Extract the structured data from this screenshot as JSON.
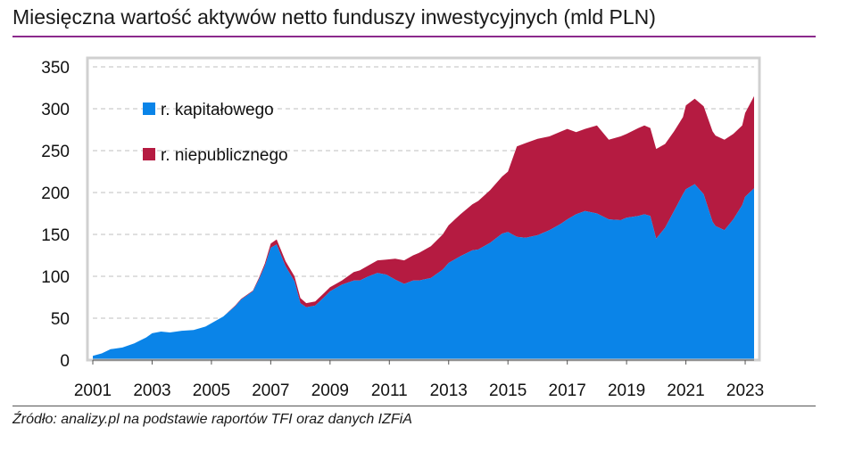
{
  "title": "Miesięczna wartość aktywów netto funduszy inwestycyjnych (mld PLN)",
  "source": "Źródło: analizy.pl na podstawie raportów TFI oraz danych IZFiA",
  "colors": {
    "kapitalowe": "#0a84e8",
    "niepubliczne": "#b51b41",
    "title_rule": "#8b2a8c",
    "grid": "#bfbfbf",
    "plot_border": "#d0d0d0"
  },
  "chart_data": {
    "type": "area",
    "stacked": true,
    "title": "Miesięczna wartość aktywów netto funduszy inwestycyjnych (mld PLN)",
    "xlabel": "",
    "ylabel": "",
    "xlim": [
      2001.0,
      2023.3
    ],
    "ylim": [
      0,
      350
    ],
    "yticks": [
      0,
      50,
      100,
      150,
      200,
      250,
      300,
      350
    ],
    "xticks": [
      "2001",
      "2003",
      "2005",
      "2007",
      "2009",
      "2011",
      "2013",
      "2015",
      "2017",
      "2019",
      "2021",
      "2023"
    ],
    "grid": true,
    "legend": {
      "placement": "top-left"
    },
    "x": [
      2001.0,
      2001.3,
      2001.6,
      2002.0,
      2002.4,
      2002.8,
      2003.0,
      2003.3,
      2003.6,
      2004.0,
      2004.4,
      2004.8,
      2005.0,
      2005.4,
      2005.8,
      2006.0,
      2006.4,
      2006.6,
      2006.8,
      2007.0,
      2007.2,
      2007.5,
      2007.8,
      2008.0,
      2008.2,
      2008.5,
      2008.8,
      2009.0,
      2009.4,
      2009.8,
      2010.0,
      2010.3,
      2010.6,
      2010.9,
      2011.2,
      2011.5,
      2011.8,
      2012.0,
      2012.4,
      2012.8,
      2013.0,
      2013.4,
      2013.8,
      2014.0,
      2014.4,
      2014.8,
      2015.0,
      2015.3,
      2015.6,
      2016.0,
      2016.4,
      2016.8,
      2017.0,
      2017.3,
      2017.6,
      2018.0,
      2018.4,
      2018.8,
      2019.0,
      2019.4,
      2019.6,
      2019.8,
      2020.0,
      2020.3,
      2020.6,
      2020.9,
      2021.0,
      2021.3,
      2021.6,
      2021.9,
      2022.0,
      2022.3,
      2022.6,
      2022.9,
      2023.0,
      2023.3
    ],
    "series": [
      {
        "name": "r. kapitałowego",
        "values": [
          5,
          8,
          13,
          15,
          20,
          27,
          32,
          34,
          33,
          35,
          36,
          40,
          44,
          52,
          64,
          72,
          82,
          96,
          112,
          134,
          138,
          112,
          94,
          68,
          63,
          65,
          75,
          82,
          90,
          95,
          95,
          100,
          104,
          102,
          96,
          91,
          95,
          95,
          98,
          108,
          116,
          124,
          131,
          132,
          140,
          151,
          153,
          147,
          146,
          149,
          155,
          163,
          168,
          174,
          178,
          175,
          168,
          167,
          170,
          172,
          174,
          172,
          145,
          158,
          178,
          198,
          204,
          210,
          198,
          165,
          160,
          155,
          168,
          185,
          195,
          205
        ]
      },
      {
        "name": "r. niepublicznego",
        "values": [
          0,
          0,
          0,
          0,
          0,
          0,
          0,
          0,
          0,
          0,
          0,
          0,
          0,
          0,
          1,
          1,
          1,
          2,
          3,
          5,
          6,
          6,
          6,
          6,
          5,
          5,
          5,
          5,
          5,
          10,
          12,
          13,
          15,
          18,
          25,
          28,
          30,
          33,
          38,
          42,
          45,
          50,
          55,
          58,
          63,
          68,
          72,
          108,
          113,
          115,
          112,
          110,
          108,
          98,
          98,
          105,
          95,
          100,
          100,
          105,
          106,
          105,
          107,
          100,
          95,
          92,
          100,
          102,
          105,
          108,
          108,
          108,
          102,
          95,
          100,
          110
        ]
      }
    ]
  }
}
